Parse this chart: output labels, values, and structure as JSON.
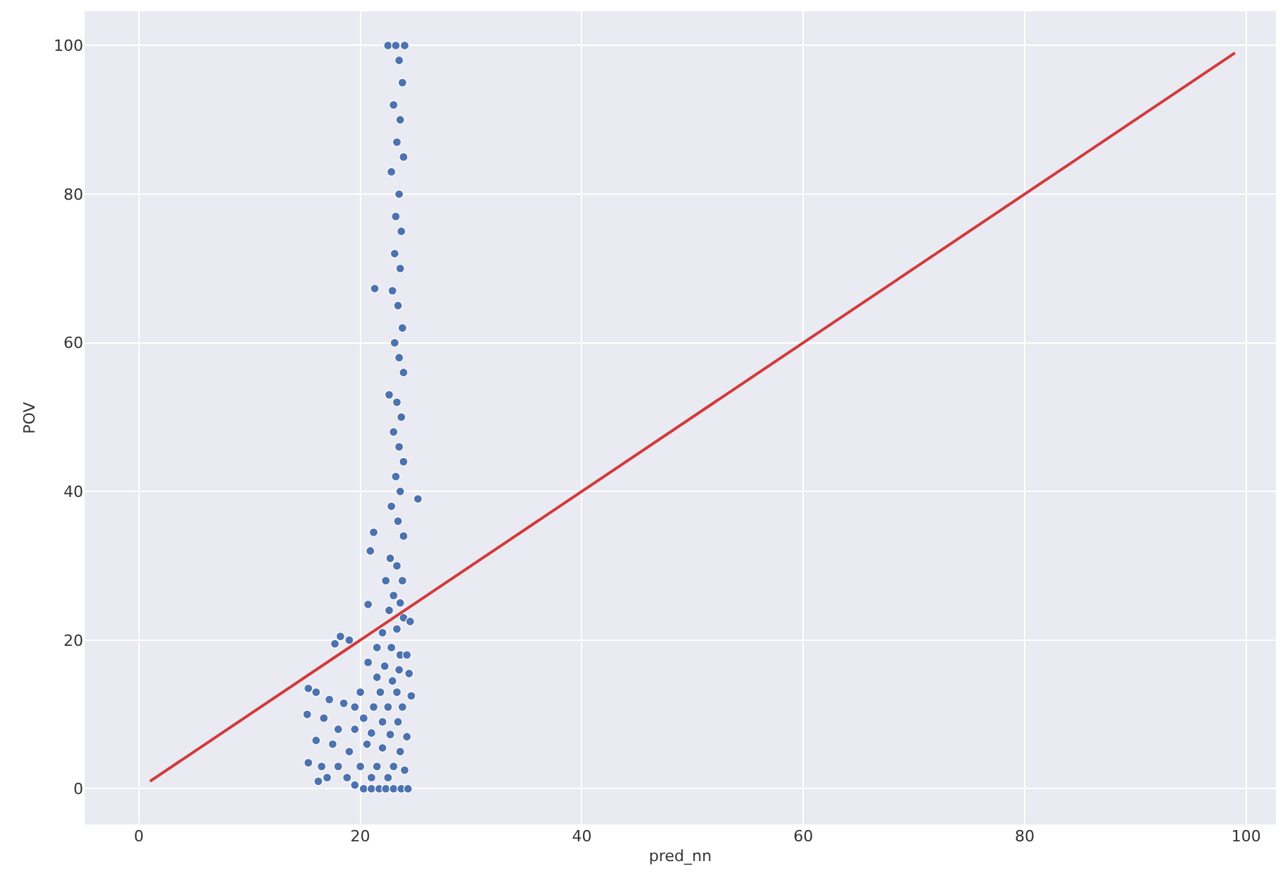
{
  "chart_data": {
    "type": "scatter",
    "xlabel": "pred_nn",
    "ylabel": "POV",
    "xlim": [
      -4.9,
      102.7
    ],
    "ylim": [
      -4.8,
      104.6
    ],
    "xticks": [
      0,
      20,
      40,
      60,
      80,
      100
    ],
    "yticks": [
      0,
      20,
      40,
      60,
      80,
      100
    ],
    "grid": true,
    "legend": false,
    "marker": "circle",
    "series": [
      {
        "color": "#4c72b0",
        "x": [
          22.5,
          23.2,
          24,
          23.5,
          23.8,
          23,
          23.6,
          23.3,
          23.9,
          22.8,
          23.5,
          23.2,
          23.7,
          23.1,
          23.6,
          22.9,
          21.3,
          23.4,
          23.8,
          23.1,
          23.5,
          23.9,
          22.6,
          23.3,
          23.7,
          23,
          23.5,
          23.9,
          23.2,
          23.6,
          25.2,
          22.8,
          23.4,
          23.9,
          21.2,
          20.9,
          22.7,
          23.3,
          23.8,
          22.3,
          23,
          23.6,
          20.7,
          22.6,
          23.9,
          24.5,
          23.3,
          22,
          18.2,
          17.7,
          19,
          21.5,
          22.8,
          23.6,
          24.2,
          20.7,
          22.2,
          23.5,
          24.4,
          21.5,
          22.9,
          15.3,
          16,
          20,
          21.8,
          23.3,
          24.6,
          17.2,
          18.5,
          19.5,
          21.2,
          22.5,
          23.8,
          15.2,
          16.7,
          20.3,
          22,
          23.4,
          18,
          19.5,
          21,
          22.7,
          24.2,
          16,
          17.5,
          20.6,
          22,
          23.6,
          19,
          15.3,
          16.5,
          18,
          20,
          21.5,
          23,
          24,
          17,
          18.8,
          21,
          22.5,
          16.2,
          19.5,
          20.3,
          21,
          21.7,
          22.3,
          23,
          23.7,
          24.3
        ],
        "values": [
          100,
          100,
          100,
          98,
          95,
          92,
          90,
          87,
          85,
          83,
          80,
          77,
          75,
          72,
          70,
          67,
          67.3,
          65,
          62,
          60,
          58,
          56,
          53,
          52,
          50,
          48,
          46,
          44,
          42,
          40,
          39,
          38,
          36,
          34,
          34.5,
          32,
          31,
          30,
          28,
          28,
          26,
          25,
          24.8,
          24,
          23,
          22.5,
          21.5,
          21,
          20.5,
          19.5,
          20,
          19,
          19,
          18,
          18,
          17,
          16.5,
          16,
          15.5,
          15,
          14.5,
          13.5,
          13,
          13,
          13,
          13,
          12.5,
          12,
          11.5,
          11,
          11,
          11,
          11,
          10,
          9.5,
          9.5,
          9,
          9,
          8,
          8,
          7.5,
          7.3,
          7,
          6.5,
          6,
          6,
          5.5,
          5,
          5,
          3.5,
          3,
          3,
          3,
          3,
          3,
          2.5,
          1.5,
          1.5,
          1.5,
          1.5,
          1,
          0.5,
          0,
          0,
          0,
          0,
          0,
          0,
          0
        ]
      },
      {
        "type": "line",
        "color": "#d23a3a",
        "x": [
          1,
          99
        ],
        "values": [
          1,
          99
        ],
        "marker": "none",
        "line_style": "solid"
      }
    ]
  }
}
